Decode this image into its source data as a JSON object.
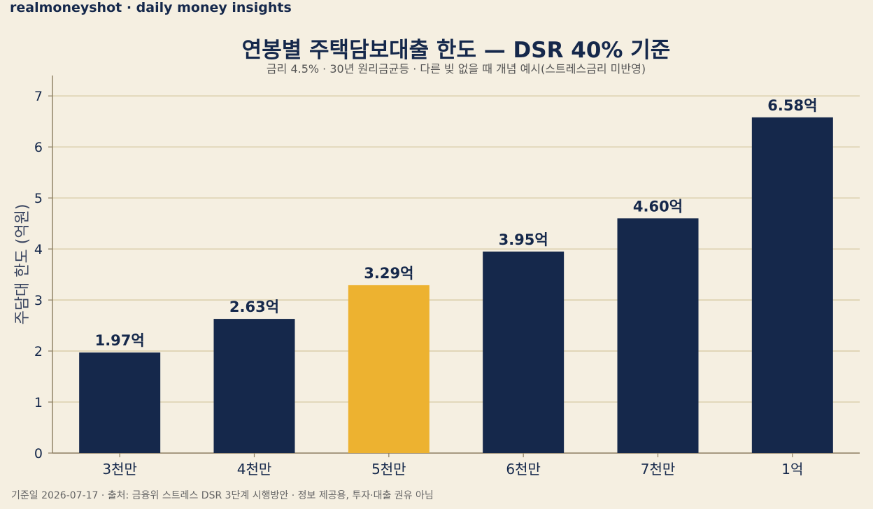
{
  "brand": "realmoneyshot · daily money insights",
  "footnote": "기준일 2026-07-17 · 출처: 금융위 스트레스 DSR 3단계 시행방안 · 정보 제공용, 투자·대출 권유 아님",
  "colors": {
    "background": "#f5efe1",
    "bar": "#15284b",
    "highlight": "#edb230",
    "grid": "#d8cba5",
    "axis": "#8b7d60"
  },
  "chart_data": {
    "type": "bar",
    "title": "연봉별 주택담보대출 한도 — DSR 40% 기준",
    "subtitle": "금리 4.5% · 30년 원리금균등 · 다른 빚 없을 때 개념 예시(스트레스금리 미반영)",
    "xlabel": "",
    "ylabel": "주담대 한도 (억원)",
    "categories": [
      "3천만",
      "4천만",
      "5천만",
      "6천만",
      "7천만",
      "1억"
    ],
    "values": [
      1.97,
      2.63,
      3.29,
      3.95,
      4.6,
      6.58
    ],
    "value_labels": [
      "1.97억",
      "2.63억",
      "3.29억",
      "3.95억",
      "4.60억",
      "6.58억"
    ],
    "highlight_category": "5천만",
    "yticks": [
      "0",
      "1",
      "2",
      "3",
      "4",
      "5",
      "6",
      "7"
    ],
    "ylim": [
      0,
      7.4
    ],
    "grid": true,
    "legend": "none"
  }
}
